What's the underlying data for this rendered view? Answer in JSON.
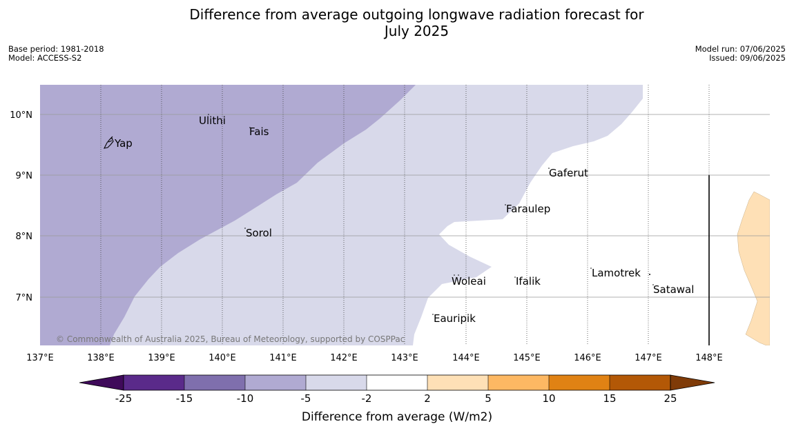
{
  "title_line1": "Difference from average outgoing longwave radiation forecast for",
  "title_line2": "July 2025",
  "base_period": "Base period: 1981-2018",
  "model": "Model: ACCESS-S2",
  "model_run": "Model run: 07/06/2025",
  "issued": "Issued: 09/06/2025",
  "lon_ticks": [
    "137°E",
    "138°E",
    "139°E",
    "140°E",
    "141°E",
    "142°E",
    "143°E",
    "144°E",
    "145°E",
    "146°E",
    "147°E",
    "148°E"
  ],
  "lat_ticks": [
    "10°N",
    "9°N",
    "8°N",
    "7°N"
  ],
  "places": {
    "yap": "Yap",
    "ulithi": "Ulithi",
    "fais": "Fais",
    "gaferut": "Gaferut",
    "faraulep": "Faraulep",
    "sorol": "Sorol",
    "woleai": "Woleai",
    "ifalik": "Ifalik",
    "lamotrek": "Lamotrek",
    "satawal": "Satawal",
    "eauripik": "Eauripik"
  },
  "copyright": "© Commonwealth of Australia 2025, Bureau of Meteorology, supported by COSPPac",
  "colorbar": {
    "title": "Difference from average (W/m2)",
    "labels": [
      "-25",
      "-15",
      "-10",
      "-5",
      "-2",
      "2",
      "5",
      "10",
      "15",
      "25"
    ],
    "colors": [
      "#3f0a5a",
      "#5a2a8a",
      "#7f6fad",
      "#b0aad2",
      "#d8d9ea",
      "#ffffff",
      "#fee0b6",
      "#fdb863",
      "#e08214",
      "#b35806",
      "#7f3b08"
    ]
  },
  "field_colors": {
    "minus10_to_minus5": "#b0aad2",
    "minus5_to_minus2": "#d8d9ea",
    "plus2_to_plus5": "#fee0b6"
  }
}
